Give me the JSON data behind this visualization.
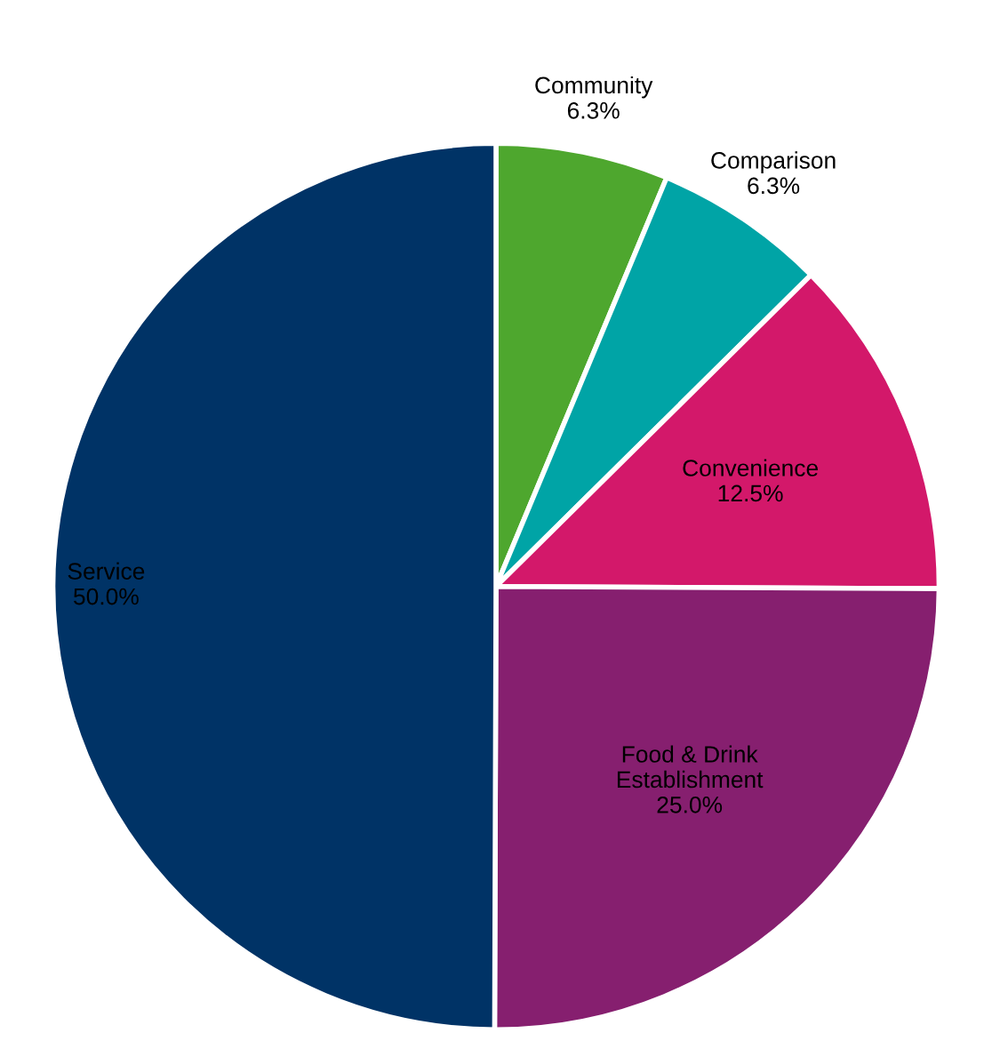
{
  "chart_data": {
    "type": "pie",
    "categories": [
      "Community",
      "Comparison",
      "Convenience",
      "Food & Drink\nEstablishment",
      "Service"
    ],
    "values": [
      6.3,
      6.3,
      12.5,
      25.0,
      50.0
    ],
    "colors": [
      "#4ea72e",
      "#00a4a6",
      "#d3186a",
      "#861f6f",
      "#003366"
    ],
    "value_labels": [
      "6.3%",
      "6.3%",
      "12.5%",
      "25.0%",
      "50.0%"
    ],
    "legend": false
  }
}
